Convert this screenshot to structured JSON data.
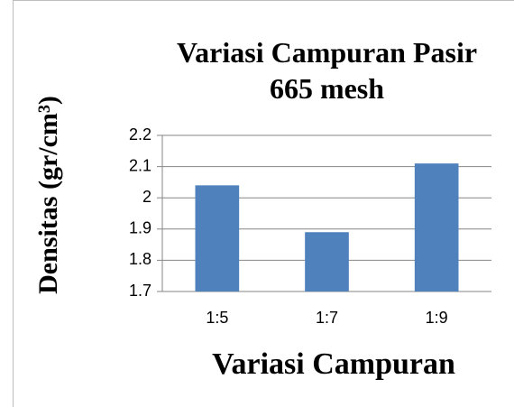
{
  "chart_data": {
    "type": "bar",
    "title": "Variasi Campuran Pasir 665 mesh",
    "x_label": "Variasi Campuran",
    "y_label": "Densitas (gr/cm³)",
    "categories": [
      "1:5",
      "1:7",
      "1:9"
    ],
    "values": [
      2.04,
      1.89,
      2.11
    ],
    "color": "#4f81bd",
    "ylim": [
      1.7,
      2.2
    ],
    "yticks": [
      1.7,
      1.8,
      1.9,
      2,
      2.1,
      2.2
    ],
    "grid": true
  }
}
